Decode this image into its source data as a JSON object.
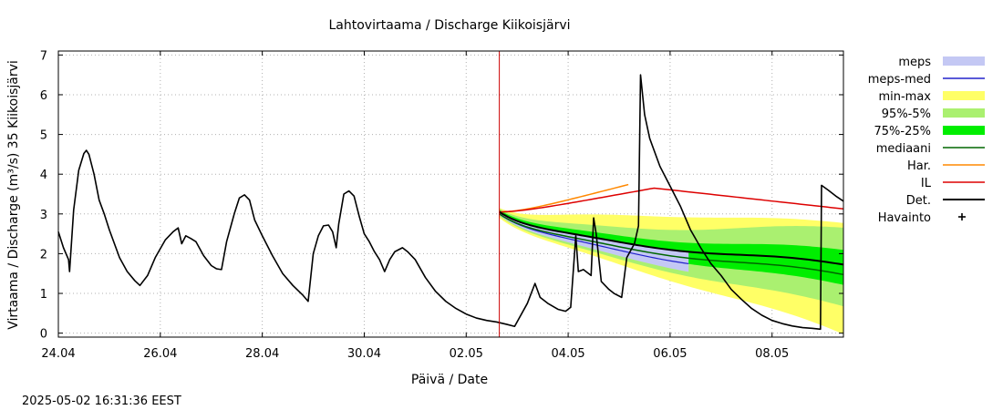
{
  "chart_data": {
    "type": "line",
    "title": "Lahtovirtaama / Discharge  Kiikoisjärvi",
    "xlabel": "Päivä / Date",
    "ylabel": "Virtaama / Discharge (m³/s)  35 Kiikoisjärvi",
    "timestamp": "2025-05-02 16:31:36 EEST",
    "xlim": [
      0,
      15.4
    ],
    "ylim": [
      -0.1,
      7.1
    ],
    "x_unit": "days since 24.04 00:00",
    "xticks": [
      {
        "x": 0,
        "label": "24.04"
      },
      {
        "x": 2,
        "label": "26.04"
      },
      {
        "x": 4,
        "label": "28.04"
      },
      {
        "x": 6,
        "label": "30.04"
      },
      {
        "x": 8,
        "label": "02.05"
      },
      {
        "x": 10,
        "label": "04.05"
      },
      {
        "x": 12,
        "label": "06.05"
      },
      {
        "x": 14,
        "label": "08.05"
      }
    ],
    "yticks": [
      0,
      1,
      2,
      3,
      4,
      5,
      6,
      7
    ],
    "grid": true,
    "legend_position": "right",
    "forecast_start": 8.65,
    "colors": {
      "meps": "#c4c8f4",
      "meps_med": "#2222cc",
      "minmax": "#ffff66",
      "p95_5": "#aaf070",
      "p75_25": "#00ee00",
      "median": "#006600",
      "har": "#ff8800",
      "il": "#dd0000",
      "det": "#000000",
      "observed": "#000000",
      "forecast_line": "#cc0000"
    },
    "legend": [
      {
        "label": "meps",
        "kind": "band",
        "key": "meps"
      },
      {
        "label": "meps-med",
        "kind": "line",
        "key": "meps_med"
      },
      {
        "label": "min-max",
        "kind": "band",
        "key": "minmax"
      },
      {
        "label": "95%-5%",
        "kind": "band",
        "key": "p95_5"
      },
      {
        "label": "75%-25%",
        "kind": "band",
        "key": "p75_25"
      },
      {
        "label": "mediaani",
        "kind": "line",
        "key": "median"
      },
      {
        "label": "Har.",
        "kind": "line",
        "key": "har"
      },
      {
        "label": "IL",
        "kind": "line",
        "key": "il"
      },
      {
        "label": "Det.",
        "kind": "thickline",
        "key": "det"
      },
      {
        "label": "Havainto",
        "kind": "plus",
        "key": "observed"
      }
    ],
    "series": {
      "observed": [
        [
          0,
          2.55
        ],
        [
          0.1,
          2.15
        ],
        [
          0.2,
          1.85
        ],
        [
          0.22,
          1.55
        ],
        [
          0.3,
          3.1
        ],
        [
          0.4,
          4.1
        ],
        [
          0.5,
          4.52
        ],
        [
          0.55,
          4.6
        ],
        [
          0.6,
          4.5
        ],
        [
          0.7,
          4.0
        ],
        [
          0.8,
          3.35
        ],
        [
          0.9,
          3.0
        ],
        [
          1.0,
          2.6
        ],
        [
          1.2,
          1.9
        ],
        [
          1.35,
          1.55
        ],
        [
          1.5,
          1.32
        ],
        [
          1.6,
          1.2
        ],
        [
          1.75,
          1.45
        ],
        [
          1.9,
          1.9
        ],
        [
          2.1,
          2.35
        ],
        [
          2.25,
          2.55
        ],
        [
          2.35,
          2.65
        ],
        [
          2.42,
          2.25
        ],
        [
          2.5,
          2.45
        ],
        [
          2.6,
          2.38
        ],
        [
          2.7,
          2.3
        ],
        [
          2.85,
          1.95
        ],
        [
          3.0,
          1.7
        ],
        [
          3.1,
          1.62
        ],
        [
          3.2,
          1.6
        ],
        [
          3.3,
          2.3
        ],
        [
          3.45,
          3.0
        ],
        [
          3.55,
          3.4
        ],
        [
          3.65,
          3.48
        ],
        [
          3.75,
          3.35
        ],
        [
          3.85,
          2.85
        ],
        [
          4.0,
          2.45
        ],
        [
          4.2,
          1.95
        ],
        [
          4.4,
          1.5
        ],
        [
          4.6,
          1.2
        ],
        [
          4.8,
          0.95
        ],
        [
          4.9,
          0.8
        ],
        [
          5.0,
          2.0
        ],
        [
          5.1,
          2.45
        ],
        [
          5.2,
          2.7
        ],
        [
          5.3,
          2.72
        ],
        [
          5.38,
          2.55
        ],
        [
          5.45,
          2.15
        ],
        [
          5.5,
          2.75
        ],
        [
          5.6,
          3.5
        ],
        [
          5.7,
          3.58
        ],
        [
          5.8,
          3.45
        ],
        [
          5.9,
          2.95
        ],
        [
          6.0,
          2.5
        ],
        [
          6.1,
          2.3
        ],
        [
          6.2,
          2.05
        ],
        [
          6.3,
          1.85
        ],
        [
          6.4,
          1.55
        ],
        [
          6.5,
          1.85
        ],
        [
          6.6,
          2.05
        ],
        [
          6.75,
          2.15
        ],
        [
          6.85,
          2.05
        ],
        [
          7.0,
          1.85
        ],
        [
          7.2,
          1.4
        ],
        [
          7.4,
          1.05
        ],
        [
          7.6,
          0.8
        ],
        [
          7.8,
          0.62
        ],
        [
          8.0,
          0.48
        ],
        [
          8.2,
          0.38
        ],
        [
          8.4,
          0.32
        ],
        [
          8.6,
          0.28
        ],
        [
          8.8,
          0.22
        ],
        [
          8.95,
          0.17
        ],
        [
          9.2,
          0.75
        ],
        [
          9.35,
          1.25
        ],
        [
          9.45,
          0.9
        ],
        [
          9.6,
          0.75
        ],
        [
          9.8,
          0.6
        ],
        [
          9.95,
          0.55
        ],
        [
          10.05,
          0.65
        ],
        [
          10.15,
          2.45
        ],
        [
          10.2,
          1.55
        ],
        [
          10.3,
          1.6
        ],
        [
          10.45,
          1.45
        ],
        [
          10.5,
          2.9
        ],
        [
          10.55,
          2.5
        ],
        [
          10.65,
          1.3
        ],
        [
          10.8,
          1.1
        ],
        [
          10.9,
          1.0
        ],
        [
          11.05,
          0.9
        ],
        [
          11.15,
          1.9
        ],
        [
          11.3,
          2.25
        ],
        [
          11.38,
          2.7
        ],
        [
          11.42,
          6.5
        ],
        [
          11.5,
          5.5
        ],
        [
          11.6,
          4.9
        ],
        [
          11.8,
          4.2
        ],
        [
          12.0,
          3.7
        ],
        [
          12.2,
          3.2
        ],
        [
          12.4,
          2.6
        ],
        [
          12.6,
          2.15
        ],
        [
          12.8,
          1.75
        ],
        [
          13.0,
          1.45
        ],
        [
          13.2,
          1.1
        ],
        [
          13.4,
          0.85
        ],
        [
          13.6,
          0.62
        ],
        [
          13.8,
          0.45
        ],
        [
          14.0,
          0.32
        ],
        [
          14.2,
          0.24
        ],
        [
          14.4,
          0.18
        ],
        [
          14.6,
          0.14
        ],
        [
          14.8,
          0.12
        ],
        [
          14.95,
          0.1
        ],
        [
          14.97,
          3.72
        ],
        [
          15.1,
          3.6
        ],
        [
          15.25,
          3.45
        ],
        [
          15.4,
          3.32
        ]
      ],
      "det": [],
      "har": [],
      "il": [],
      "median": [],
      "meps_med": []
    },
    "bands": {
      "minmax": [],
      "p95_5": [],
      "p75_25": [],
      "meps": []
    }
  }
}
